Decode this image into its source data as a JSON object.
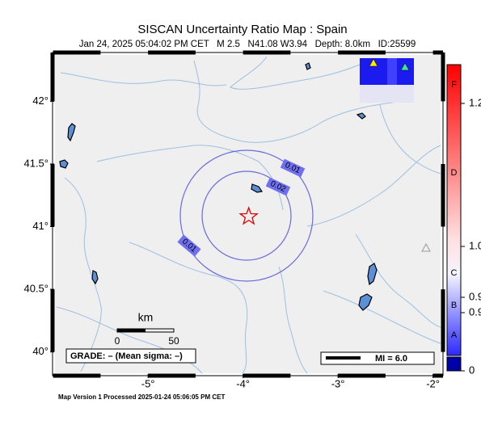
{
  "title": "SISCAN Uncertainty Ratio Map : Spain",
  "subtitle": "Jan 24, 2025 05:04:02 PM CET   M 2.5   N41.08 W3.94   Depth: 8.0km   ID:25599",
  "map": {
    "lat_range": [
      39.83,
      42.37
    ],
    "lon_range": [
      -5.98,
      -1.92
    ],
    "lat_ticks": [
      {
        "value": 42,
        "label": "42°"
      },
      {
        "value": 41.5,
        "label": "41.5°"
      },
      {
        "value": 41,
        "label": "41°"
      },
      {
        "value": 40.5,
        "label": "40.5°"
      },
      {
        "value": 40,
        "label": "40°"
      }
    ],
    "lon_ticks": [
      {
        "value": -5,
        "label": "-5°"
      },
      {
        "value": -4,
        "label": "-4°"
      },
      {
        "value": -3,
        "label": "-3°"
      },
      {
        "value": -2,
        "label": "-2°"
      }
    ],
    "epicenter": {
      "lat": 41.08,
      "lon": -3.94
    },
    "contour_labels": [
      "0.01",
      "0.02",
      "0.01"
    ],
    "scale_bar": {
      "unit": "km",
      "labels": [
        "0",
        "50"
      ]
    },
    "grade": "GRADE: – (Mean sigma: –)",
    "mi_legend": "MI = 6.0"
  },
  "colorbar": {
    "grades": [
      "F",
      "D",
      "C",
      "B",
      "A"
    ],
    "labels": [
      "1.2",
      "1.0",
      "0.9",
      "0.9",
      "0"
    ]
  },
  "footer": "Map Version 1 Processed 2025-01-24 05:06:05 PM CET"
}
